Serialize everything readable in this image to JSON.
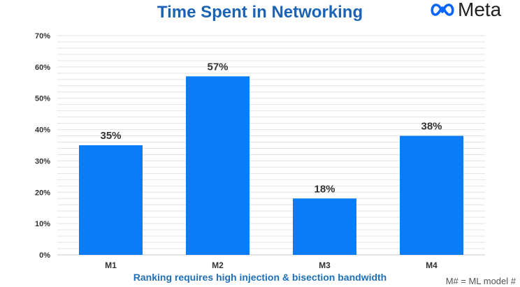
{
  "colors": {
    "bar": "#0a7cf5",
    "title": "#1b63b5",
    "subtitle": "#1f6fb8",
    "grid": "#e2e2e2"
  },
  "logo": {
    "icon": "meta-infinity-icon",
    "text": "Meta"
  },
  "footnote": "M# = ML model #",
  "chart_data": {
    "type": "bar",
    "title": "Time Spent in Networking",
    "subtitle": "Ranking requires high injection & bisection bandwidth",
    "categories": [
      "M1",
      "M2",
      "M3",
      "M4"
    ],
    "values": [
      35,
      57,
      18,
      38
    ],
    "data_labels": [
      "35%",
      "57%",
      "18%",
      "38%"
    ],
    "ylim": [
      0,
      70
    ],
    "yticks": [
      0,
      10,
      20,
      30,
      40,
      50,
      60,
      70
    ],
    "ytick_labels": [
      "0%",
      "10%",
      "20%",
      "30%",
      "40%",
      "50%",
      "60%",
      "70%"
    ],
    "grid": true,
    "legend": "none"
  }
}
